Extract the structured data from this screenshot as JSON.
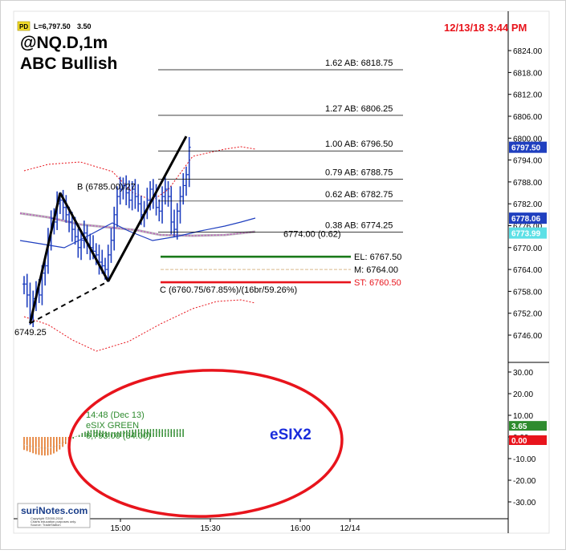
{
  "header": {
    "pd_badge": "PD",
    "last_price": "L=6,797.50",
    "change": "3.50",
    "timestamp": "12/13/18 3:44 PM",
    "symbol": "@NQ.D,1m",
    "pattern": "ABC Bullish"
  },
  "logo": {
    "brand": "suriNotes.com",
    "line1": "Copyright ©2000-2018",
    "line2": "Charts education purposes only.",
    "line3": "Source: TradeStation"
  },
  "colors": {
    "accent_red": "#e8141c",
    "entry_green": "#1a7a1a",
    "price_blue": "#1f3fbf",
    "esix_green": "#2e8b2e",
    "esix_orange": "#e06a14",
    "ma_magenta": "#c060c0"
  },
  "chart_data": [
    {
      "type": "line",
      "title": "@NQ.D,1m",
      "subtitle": "ABC Bullish",
      "xlabel": "",
      "ylabel": "",
      "x_ticks": [
        "15:00",
        "15:30",
        "16:00",
        "12/14"
      ],
      "y_ticks": [
        6746.0,
        6752.0,
        6758.0,
        6764.0,
        6770.0,
        6776.0,
        6782.0,
        6788.0,
        6794.0,
        6800.0,
        6806.0,
        6812.0,
        6818.0,
        6824.0
      ],
      "ylim": [
        6742,
        6830
      ],
      "price_labels": [
        {
          "text": "6797.50",
          "value": 6797.5,
          "bg": "#1f3fbf"
        },
        {
          "text": "6778.06",
          "value": 6778.06,
          "bg": "#1f3fbf"
        },
        {
          "text": "6773.99",
          "value": 6773.99,
          "bg": "#5de0e6"
        }
      ],
      "fib_levels": [
        {
          "label": "1.62 AB: 6818.75",
          "value": 6818.75
        },
        {
          "label": "1.27 AB: 6806.25",
          "value": 6806.25
        },
        {
          "label": "1.00 AB: 6796.50",
          "value": 6796.5
        },
        {
          "label": "0.79 AB: 6788.75",
          "value": 6788.75
        },
        {
          "label": "0.62 AB: 6782.75",
          "value": 6782.75
        },
        {
          "label": "0.38 AB: 6774.25",
          "value": 6774.25
        }
      ],
      "midline_label": {
        "text": "6774.00 (0.62)",
        "value": 6774.0
      },
      "trade_levels": [
        {
          "label": "EL: 6767.50",
          "value": 6767.5,
          "color": "#1a7a1a"
        },
        {
          "label": "M: 6764.00",
          "value": 6764.0,
          "color": "#d9b98a"
        },
        {
          "label": "ST: 6760.50",
          "value": 6760.5,
          "color": "#e8141c"
        }
      ],
      "annotations": {
        "point_a": "6749.25",
        "point_b": "B (6785.00)/27",
        "point_c": "C (6760.75/67.85%)/(16br/59.26%)"
      },
      "pattern_points": [
        {
          "name": "A",
          "time": "14:48",
          "value": 6749.25
        },
        {
          "name": "B",
          "time": "14:58",
          "value": 6785.0
        },
        {
          "name": "C",
          "time": "15:14",
          "value": 6760.75
        },
        {
          "name": "D",
          "time": "15:40",
          "value": 6800.5
        }
      ],
      "price_series": [
        {
          "t": "14:46",
          "v": 6760
        },
        {
          "t": "14:47",
          "v": 6757
        },
        {
          "t": "14:48",
          "v": 6751
        },
        {
          "t": "14:49",
          "v": 6756
        },
        {
          "t": "14:50",
          "v": 6758
        },
        {
          "t": "14:51",
          "v": 6757
        },
        {
          "t": "14:52",
          "v": 6763
        },
        {
          "t": "14:53",
          "v": 6765
        },
        {
          "t": "14:54",
          "v": 6772
        },
        {
          "t": "14:55",
          "v": 6778
        },
        {
          "t": "14:56",
          "v": 6777
        },
        {
          "t": "14:57",
          "v": 6782
        },
        {
          "t": "14:58",
          "v": 6783
        },
        {
          "t": "14:59",
          "v": 6781
        },
        {
          "t": "15:00",
          "v": 6779
        },
        {
          "t": "15:01",
          "v": 6777
        },
        {
          "t": "15:02",
          "v": 6775
        },
        {
          "t": "15:03",
          "v": 6773
        },
        {
          "t": "15:04",
          "v": 6770
        },
        {
          "t": "15:05",
          "v": 6772
        },
        {
          "t": "15:06",
          "v": 6774
        },
        {
          "t": "15:07",
          "v": 6771
        },
        {
          "t": "15:08",
          "v": 6770
        },
        {
          "t": "15:09",
          "v": 6769
        },
        {
          "t": "15:10",
          "v": 6768
        },
        {
          "t": "15:11",
          "v": 6766
        },
        {
          "t": "15:12",
          "v": 6765
        },
        {
          "t": "15:13",
          "v": 6764
        },
        {
          "t": "15:14",
          "v": 6768
        },
        {
          "t": "15:15",
          "v": 6772
        },
        {
          "t": "15:16",
          "v": 6779
        },
        {
          "t": "15:17",
          "v": 6784
        },
        {
          "t": "15:18",
          "v": 6786
        },
        {
          "t": "15:19",
          "v": 6787
        },
        {
          "t": "15:20",
          "v": 6785
        },
        {
          "t": "15:21",
          "v": 6783
        },
        {
          "t": "15:22",
          "v": 6786
        },
        {
          "t": "15:23",
          "v": 6784
        },
        {
          "t": "15:24",
          "v": 6782
        },
        {
          "t": "15:25",
          "v": 6779
        },
        {
          "t": "15:26",
          "v": 6780
        },
        {
          "t": "15:27",
          "v": 6783
        },
        {
          "t": "15:28",
          "v": 6786
        },
        {
          "t": "15:29",
          "v": 6784
        },
        {
          "t": "15:30",
          "v": 6781
        },
        {
          "t": "15:31",
          "v": 6780
        },
        {
          "t": "15:32",
          "v": 6784
        },
        {
          "t": "15:33",
          "v": 6786
        },
        {
          "t": "15:34",
          "v": 6784
        },
        {
          "t": "15:35",
          "v": 6777
        },
        {
          "t": "15:36",
          "v": 6775
        },
        {
          "t": "15:37",
          "v": 6780
        },
        {
          "t": "15:38",
          "v": 6784
        },
        {
          "t": "15:39",
          "v": 6787
        },
        {
          "t": "15:40",
          "v": 6790
        },
        {
          "t": "15:41",
          "v": 6797.5
        }
      ],
      "grid": false,
      "legend": "none"
    },
    {
      "type": "bar",
      "title": "eSIX2",
      "annotation_lines": [
        "14:48 (Dec 13)",
        "eSIX GREEN",
        "6,793.00 (34.00)"
      ],
      "y_ticks": [
        30,
        20,
        10,
        0,
        -10,
        -20,
        -30
      ],
      "ylim": [
        -35,
        37
      ],
      "value_labels": [
        {
          "text": "3.65",
          "value": 3.65,
          "bg": "#2e8b2e"
        },
        {
          "text": "0.00",
          "value": 0.0,
          "bg": "#e8141c"
        }
      ],
      "orange_values": [
        -6,
        -6.5,
        -7,
        -7.5,
        -8,
        -8.3,
        -8.5,
        -8.6,
        -8.5,
        -8.2,
        -7.6,
        -6.8,
        -5.8,
        -4.6,
        -3.3,
        -2
      ],
      "green_values": [
        -0.8,
        0.2,
        1,
        1.8,
        2.4,
        2.9,
        3.2,
        3.3,
        3.3,
        3.1,
        2.8,
        2.5,
        2.3,
        2.2,
        2.2,
        2.4,
        2.6,
        2.9,
        3.1,
        3.3,
        3.4,
        3.5,
        3.6,
        3.65,
        3.6,
        3.6,
        3.65,
        3.7,
        3.7,
        3.65,
        3.6,
        3.6,
        3.65,
        3.65,
        3.6,
        3.6,
        3.65,
        3.65
      ],
      "x_ticks": [
        "15:00",
        "15:30",
        "16:00",
        "12/14"
      ]
    }
  ]
}
